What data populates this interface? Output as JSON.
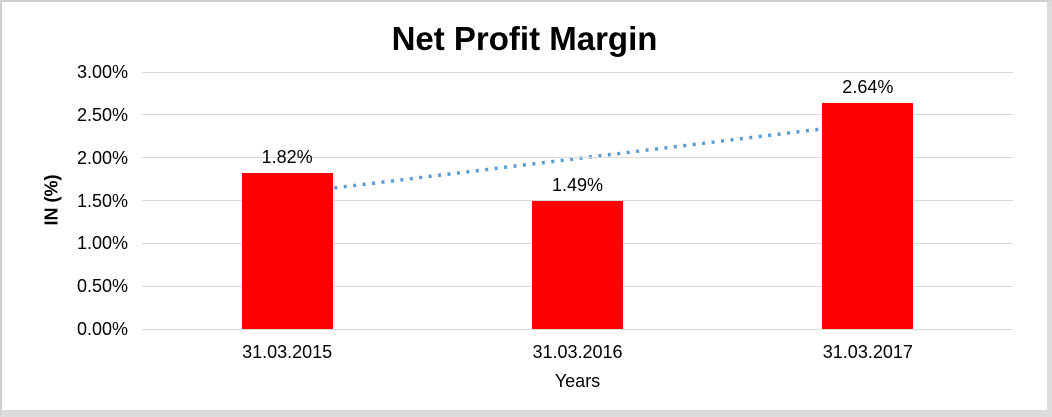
{
  "frame": {
    "background": "#ffffff",
    "border_color": "#dcdcdc",
    "gridline_color": "#d9d9d9",
    "text_color": "#000000"
  },
  "chart_data": {
    "type": "bar",
    "title": "Net Profit Margin",
    "xlabel": "Years",
    "ylabel": "IN (%)",
    "categories": [
      "31.03.2015",
      "31.03.2016",
      "31.03.2017"
    ],
    "series": [
      {
        "name": "Net Profit Margin",
        "values": [
          1.82,
          1.49,
          2.64
        ]
      }
    ],
    "data_labels": [
      "1.82%",
      "1.49%",
      "2.64%"
    ],
    "bar_color": "#ff0000",
    "ylim": [
      0,
      3.0
    ],
    "grid": true,
    "legend": "none",
    "y_axis": {
      "ticks": [
        {
          "label": "3.00%",
          "value": 3.0
        },
        {
          "label": "2.50%",
          "value": 2.5
        },
        {
          "label": "2.00%",
          "value": 2.0
        },
        {
          "label": "1.50%",
          "value": 1.5
        },
        {
          "label": "1.00%",
          "value": 1.0
        },
        {
          "label": "0.50%",
          "value": 0.5
        },
        {
          "label": "0.00%",
          "value": 0.0
        }
      ]
    },
    "trendline": {
      "type": "linear",
      "style": "dotted",
      "color": "#5b9bd5",
      "start_value": 1.58,
      "end_value": 2.4
    }
  }
}
